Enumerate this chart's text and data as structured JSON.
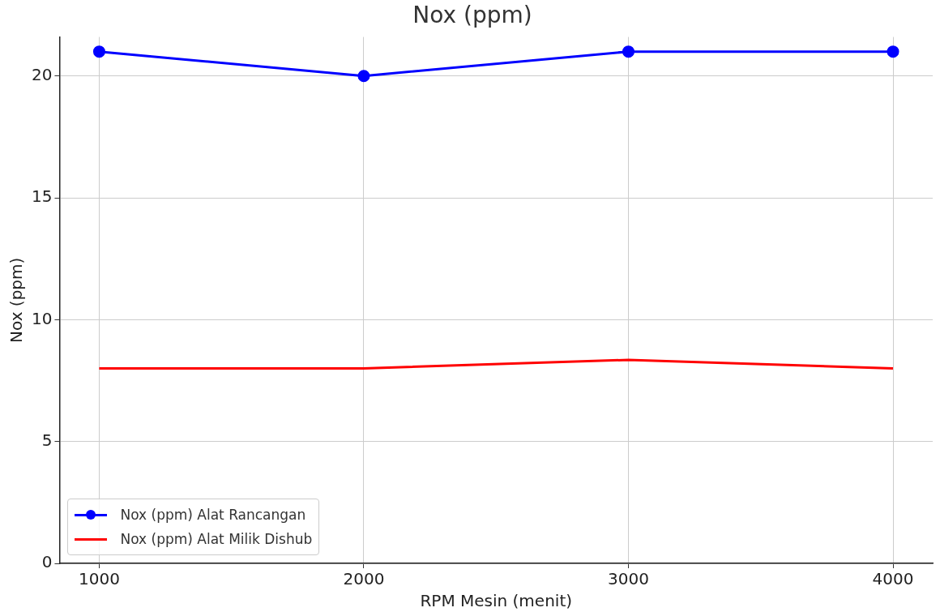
{
  "chart_data": {
    "type": "line",
    "title": "Nox (ppm)",
    "xlabel": "RPM Mesin (menit)",
    "ylabel": "Nox (ppm)",
    "x": [
      1000,
      2000,
      3000,
      4000
    ],
    "series": [
      {
        "name": "Nox (ppm) Alat Rancangan",
        "color": "#0000ff",
        "marker": "circle",
        "values": [
          21,
          20,
          21,
          21
        ]
      },
      {
        "name": "Nox (ppm) Alat Milik Dishub",
        "color": "#ff0000",
        "marker": "none",
        "values": [
          8,
          8,
          8.35,
          8
        ]
      }
    ],
    "xlim": [
      850,
      4150
    ],
    "ylim": [
      0,
      21.6
    ],
    "xticks": [
      1000,
      2000,
      3000,
      4000
    ],
    "yticks": [
      0,
      5,
      10,
      15,
      20
    ],
    "grid": true,
    "legend": "bottom left",
    "line_style": "solid"
  }
}
